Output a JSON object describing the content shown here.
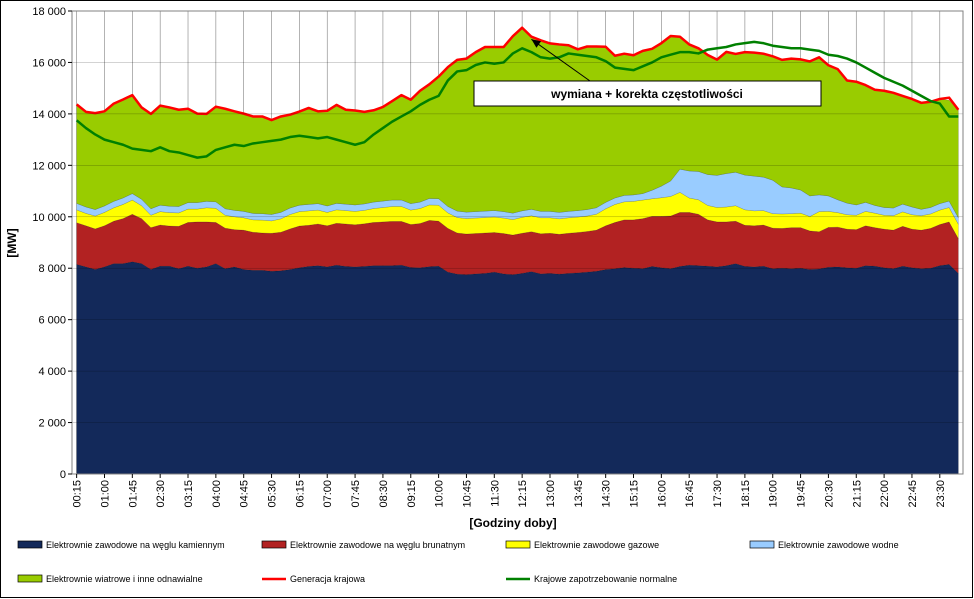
{
  "chart_data": {
    "type": "area",
    "xlabel": "[Godziny doby]",
    "ylabel": "[MW]",
    "ylim": [
      0,
      18000
    ],
    "yticks": [
      0,
      2000,
      4000,
      6000,
      8000,
      10000,
      12000,
      14000,
      16000,
      18000
    ],
    "ytick_labels": [
      "0",
      "2 000",
      "4 000",
      "6 000",
      "8 000",
      "10 000",
      "12 000",
      "14 000",
      "16 000",
      "18 000"
    ],
    "x": [
      "00:15",
      "00:30",
      "00:45",
      "01:00",
      "01:15",
      "01:30",
      "01:45",
      "02:00",
      "02:15",
      "02:30",
      "02:45",
      "03:00",
      "03:15",
      "03:30",
      "03:45",
      "04:00",
      "04:15",
      "04:30",
      "04:45",
      "05:00",
      "05:15",
      "05:30",
      "05:45",
      "06:00",
      "06:15",
      "06:30",
      "06:45",
      "07:00",
      "07:15",
      "07:30",
      "07:45",
      "08:00",
      "08:15",
      "08:30",
      "08:45",
      "09:00",
      "09:15",
      "09:30",
      "09:45",
      "10:00",
      "10:15",
      "10:30",
      "10:45",
      "11:00",
      "11:15",
      "11:30",
      "11:45",
      "12:00",
      "12:15",
      "12:30",
      "12:45",
      "13:00",
      "13:15",
      "13:30",
      "13:45",
      "14:00",
      "14:15",
      "14:30",
      "14:45",
      "15:00",
      "15:15",
      "15:30",
      "15:45",
      "16:00",
      "16:15",
      "16:30",
      "16:45",
      "17:00",
      "17:15",
      "17:30",
      "17:45",
      "18:00",
      "18:15",
      "18:30",
      "18:45",
      "19:00",
      "19:15",
      "19:30",
      "19:45",
      "20:00",
      "20:15",
      "20:30",
      "20:45",
      "21:00",
      "21:15",
      "21:30",
      "21:45",
      "22:00",
      "22:15",
      "22:30",
      "22:45",
      "23:00",
      "23:15",
      "23:30",
      "23:45",
      "24:00"
    ],
    "xtick_labels": [
      "00:15",
      "01:00",
      "01:45",
      "02:30",
      "03:15",
      "04:00",
      "04:45",
      "05:30",
      "06:15",
      "07:00",
      "07:45",
      "08:30",
      "09:15",
      "10:00",
      "10:45",
      "11:30",
      "12:15",
      "13:00",
      "13:45",
      "14:30",
      "15:15",
      "16:00",
      "16:45",
      "17:30",
      "18:15",
      "19:00",
      "19:45",
      "20:30",
      "21:15",
      "22:00",
      "22:45",
      "23:30"
    ],
    "series": [
      {
        "name": "Elektrownie zawodowe na węglu kamiennym",
        "color": "#13295a",
        "stack": true,
        "values": [
          8150,
          8050,
          7950,
          8050,
          8180,
          8180,
          8250,
          8180,
          7950,
          8080,
          8080,
          7980,
          8080,
          8000,
          8050,
          8180,
          7980,
          8050,
          7950,
          7920,
          7920,
          7880,
          7900,
          7950,
          8020,
          8070,
          8100,
          8050,
          8120,
          8070,
          8050,
          8070,
          8100,
          8100,
          8100,
          8120,
          8030,
          8020,
          8060,
          8080,
          7850,
          7770,
          7750,
          7780,
          7800,
          7850,
          7780,
          7750,
          7800,
          7870,
          7780,
          7800,
          7770,
          7800,
          7820,
          7850,
          7880,
          7950,
          7980,
          8030,
          8000,
          7980,
          8070,
          8020,
          7980,
          8070,
          8120,
          8100,
          8080,
          8050,
          8100,
          8180,
          8070,
          8050,
          8080,
          7980,
          8000,
          7980,
          8000,
          7950,
          7970,
          8040,
          8050,
          8020,
          8000,
          8100,
          8080,
          8020,
          7980,
          8080,
          8020,
          7980,
          8000,
          8100,
          8150,
          7800
        ]
      },
      {
        "name": "Elektrownie zawodowe na węglu brunatnym",
        "color": "#b22222",
        "stack": true,
        "values": [
          1620,
          1600,
          1580,
          1600,
          1650,
          1750,
          1850,
          1750,
          1630,
          1600,
          1560,
          1650,
          1700,
          1800,
          1750,
          1600,
          1580,
          1450,
          1530,
          1480,
          1450,
          1480,
          1500,
          1580,
          1620,
          1600,
          1620,
          1600,
          1630,
          1650,
          1640,
          1660,
          1680,
          1700,
          1720,
          1700,
          1670,
          1720,
          1800,
          1750,
          1700,
          1600,
          1580,
          1570,
          1570,
          1540,
          1570,
          1540,
          1560,
          1550,
          1560,
          1560,
          1550,
          1560,
          1570,
          1580,
          1600,
          1700,
          1800,
          1850,
          1880,
          1950,
          1950,
          2000,
          2050,
          2100,
          2050,
          2000,
          1800,
          1750,
          1700,
          1650,
          1600,
          1600,
          1600,
          1580,
          1550,
          1600,
          1580,
          1500,
          1450,
          1550,
          1550,
          1500,
          1500,
          1550,
          1500,
          1500,
          1500,
          1550,
          1500,
          1500,
          1550,
          1600,
          1650,
          1350
        ]
      },
      {
        "name": "Elektrownie zawodowe gazowe",
        "color": "#ffff00",
        "stack": true,
        "values": [
          500,
          480,
          500,
          520,
          520,
          550,
          550,
          500,
          480,
          520,
          520,
          520,
          520,
          500,
          550,
          550,
          500,
          500,
          480,
          480,
          500,
          480,
          520,
          560,
          560,
          560,
          540,
          520,
          520,
          520,
          520,
          520,
          540,
          560,
          580,
          580,
          560,
          580,
          600,
          620,
          600,
          600,
          600,
          600,
          600,
          600,
          600,
          600,
          620,
          620,
          620,
          600,
          600,
          600,
          600,
          600,
          620,
          660,
          700,
          700,
          720,
          720,
          680,
          720,
          760,
          780,
          560,
          560,
          560,
          560,
          580,
          600,
          600,
          580,
          560,
          560,
          560,
          540,
          560,
          560,
          780,
          620,
          560,
          560,
          560,
          560,
          560,
          540,
          560,
          560,
          560,
          560,
          560,
          560,
          560,
          560
        ]
      },
      {
        "name": "Elektrownie zawodowe wodne",
        "color": "#99ccff",
        "stack": true,
        "values": [
          250,
          250,
          250,
          250,
          250,
          250,
          250,
          250,
          250,
          250,
          250,
          250,
          250,
          250,
          250,
          250,
          250,
          250,
          250,
          250,
          250,
          250,
          250,
          250,
          250,
          250,
          250,
          250,
          250,
          250,
          250,
          250,
          250,
          250,
          250,
          250,
          250,
          250,
          250,
          250,
          250,
          250,
          250,
          250,
          250,
          250,
          250,
          250,
          250,
          250,
          250,
          250,
          250,
          250,
          250,
          250,
          250,
          250,
          250,
          250,
          250,
          250,
          330,
          450,
          600,
          900,
          1050,
          1100,
          1200,
          1250,
          1300,
          1300,
          1350,
          1350,
          1300,
          1300,
          1050,
          1000,
          900,
          800,
          650,
          600,
          500,
          450,
          400,
          350,
          300,
          300,
          300,
          300,
          300,
          250,
          250,
          250,
          250,
          250
        ]
      },
      {
        "name": "Elektrownie wiatrowe i inne odnawialne",
        "color": "#99cc00",
        "stack": true,
        "values": [
          3850,
          3700,
          3750,
          3680,
          3800,
          3830,
          3830,
          3570,
          3690,
          3870,
          3840,
          3760,
          3650,
          3460,
          3400,
          3700,
          3870,
          3850,
          3800,
          3770,
          3780,
          3650,
          3730,
          3630,
          3640,
          3740,
          3590,
          3700,
          3830,
          3670,
          3670,
          3580,
          3570,
          3660,
          3850,
          4080,
          4040,
          4330,
          4440,
          4750,
          5420,
          5880,
          5970,
          6200,
          6380,
          6360,
          6400,
          6880,
          7120,
          6710,
          6650,
          6530,
          6530,
          6460,
          6270,
          6340,
          6270,
          6050,
          5530,
          5510,
          5430,
          5550,
          5500,
          5560,
          5590,
          5150,
          4920,
          4790,
          4650,
          4500,
          4730,
          4600,
          4780,
          4800,
          4800,
          4820,
          4940,
          5030,
          5080,
          5230,
          5350,
          5080,
          5080,
          4770,
          4790,
          4560,
          4500,
          4540,
          4480,
          4210,
          4200,
          4140,
          4110,
          4070,
          3920,
          4200
        ]
      },
      {
        "name": "Generacja krajowa",
        "color": "#ff0000",
        "stack": false,
        "values": [
          14370,
          14080,
          14030,
          14100,
          14400,
          14560,
          14730,
          14250,
          14000,
          14320,
          14250,
          14160,
          14200,
          14010,
          14000,
          14280,
          14200,
          14100,
          14010,
          13900,
          13900,
          13760,
          13900,
          13970,
          14090,
          14230,
          14100,
          14120,
          14350,
          14160,
          14130,
          14080,
          14140,
          14270,
          14500,
          14730,
          14550,
          14900,
          15150,
          15450,
          15820,
          16100,
          16150,
          16400,
          16600,
          16600,
          16600,
          17020,
          17350,
          17000,
          16860,
          16740,
          16700,
          16670,
          16510,
          16620,
          16620,
          16610,
          16260,
          16340,
          16280,
          16450,
          16530,
          16750,
          17030,
          17000,
          16700,
          16550,
          16290,
          16110,
          16410,
          16330,
          16400,
          16380,
          16340,
          16240,
          16100,
          16150,
          16120,
          16040,
          16200,
          15890,
          15740,
          15300,
          15250,
          15120,
          14940,
          14900,
          14820,
          14700,
          14580,
          14430,
          14470,
          14580,
          14630,
          14160
        ]
      },
      {
        "name": "Krajowe zapotrzebowanie normalne",
        "color": "#008000",
        "stack": false,
        "values": [
          13750,
          13450,
          13200,
          13000,
          12900,
          12800,
          12650,
          12600,
          12550,
          12700,
          12550,
          12500,
          12400,
          12300,
          12350,
          12600,
          12700,
          12800,
          12750,
          12850,
          12900,
          12950,
          13000,
          13100,
          13150,
          13100,
          13050,
          13100,
          13000,
          12900,
          12800,
          12900,
          13200,
          13450,
          13700,
          13900,
          14100,
          14350,
          14550,
          14700,
          15300,
          15650,
          15700,
          15900,
          16000,
          15950,
          16000,
          16350,
          16550,
          16400,
          16200,
          16150,
          16200,
          16350,
          16300,
          16250,
          16200,
          16050,
          15800,
          15750,
          15700,
          15850,
          16000,
          16200,
          16300,
          16400,
          16400,
          16350,
          16500,
          16550,
          16600,
          16700,
          16750,
          16800,
          16750,
          16650,
          16600,
          16550,
          16550,
          16500,
          16450,
          16300,
          16250,
          16150,
          16000,
          15800,
          15600,
          15400,
          15250,
          15100,
          14900,
          14700,
          14500,
          14400,
          13900,
          13900
        ]
      }
    ],
    "annotation": {
      "text": "wymiana + korekta częstotliwości",
      "x": "12:30",
      "y": 16900
    }
  },
  "legend_colors": {
    "red_line": "#ff0000",
    "green_line": "#008000",
    "border": "#000000"
  }
}
